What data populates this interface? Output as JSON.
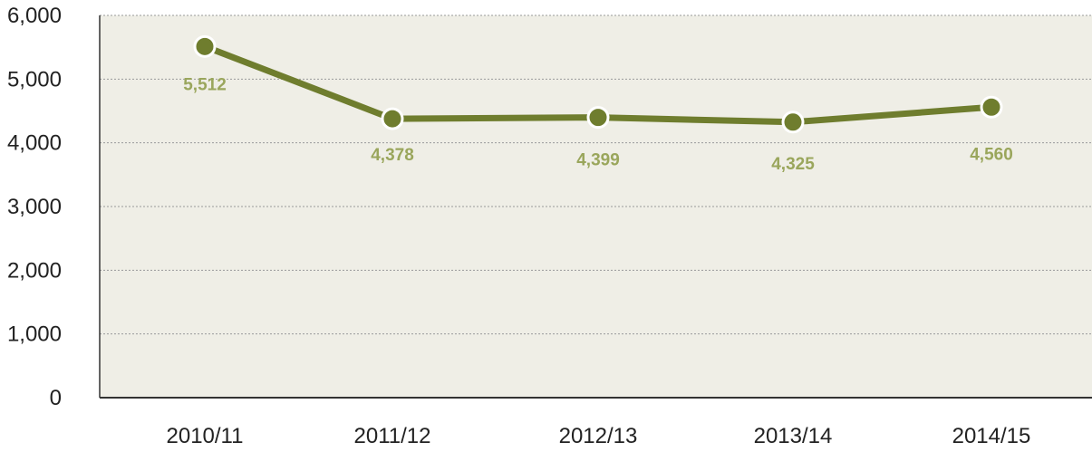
{
  "chart_data": {
    "type": "line",
    "title": "",
    "xlabel": "",
    "ylabel": "",
    "categories": [
      "2010/11",
      "2011/12",
      "2012/13",
      "2013/14",
      "2014/15"
    ],
    "series": [
      {
        "values": [
          5512,
          4378,
          4399,
          4325,
          4560
        ],
        "data_labels": [
          "5,512",
          "4,378",
          "4,399",
          "4,325",
          "4,560"
        ]
      }
    ],
    "y_ticks": [
      0,
      1000,
      2000,
      3000,
      4000,
      5000,
      6000
    ],
    "y_tick_labels": [
      "0",
      "1,000",
      "2,000",
      "3,000",
      "4,000",
      "5,000",
      "6,000"
    ],
    "ylim": [
      0,
      6000
    ],
    "grid": true,
    "legend": "none",
    "colors": {
      "plot_background": "#efeee6",
      "line": "#6f7d2e",
      "marker": "#6f7d2e",
      "marker_outline": "#ffffff",
      "data_label": "#9aa65c",
      "gridline": "#9a9a9a",
      "axis": "#333333"
    }
  }
}
